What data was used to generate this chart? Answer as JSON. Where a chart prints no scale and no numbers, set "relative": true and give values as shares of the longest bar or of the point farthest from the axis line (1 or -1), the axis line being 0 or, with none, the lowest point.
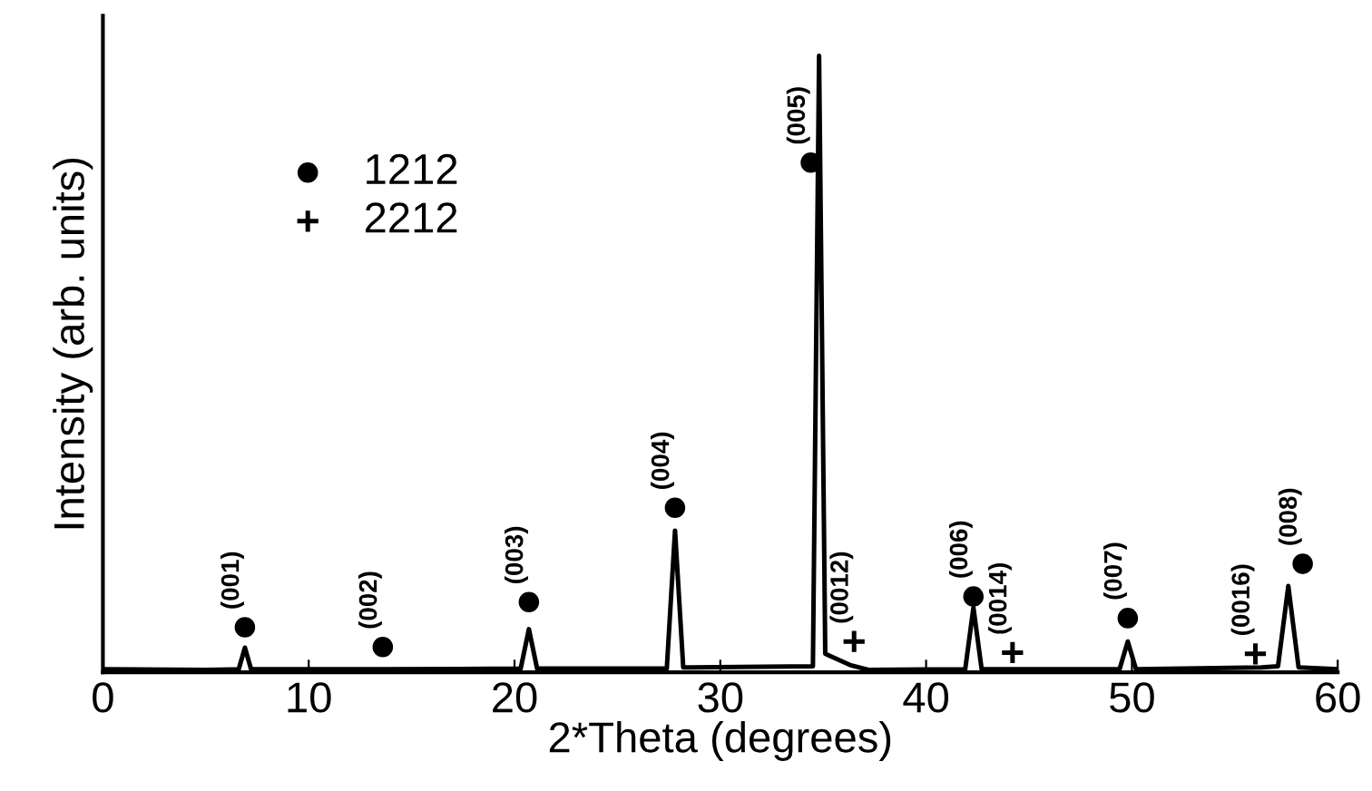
{
  "chart_data": {
    "type": "line",
    "relative": true,
    "xlabel": "2*Theta (degrees)",
    "ylabel": "Intensity (arb. units)",
    "xlim": [
      0,
      60
    ],
    "xticks": [
      0,
      10,
      20,
      30,
      40,
      50,
      60
    ],
    "grid": false,
    "legend": "top left",
    "tick_labels": "x",
    "series": [
      {
        "color": "#000000",
        "marker": "none",
        "x": [
          0,
          5,
          6.6,
          6.9,
          7.2,
          13.6,
          20.3,
          20.7,
          21.1,
          27.4,
          27.8,
          28.2,
          34.5,
          34.8,
          35.1,
          36.3,
          37.2,
          41.9,
          42.3,
          42.7,
          49.4,
          49.8,
          50.2,
          56.3,
          57.1,
          57.6,
          58.1,
          60
        ],
        "values": [
          0.005,
          0.004,
          0.005,
          0.04,
          0.005,
          0.005,
          0.006,
          0.07,
          0.006,
          0.006,
          0.23,
          0.008,
          0.01,
          1,
          0.03,
          0.012,
          0.004,
          0.005,
          0.105,
          0.005,
          0.005,
          0.05,
          0.005,
          0.008,
          0.01,
          0.14,
          0.008,
          0.005
        ]
      },
      {
        "type": "scatter",
        "name": "1212",
        "color": "#000000",
        "marker": "circle",
        "x": [
          6.9,
          13.6,
          20.7,
          27.8,
          34.4,
          42.3,
          49.8,
          58.3
        ],
        "values": [
          0.073,
          0.041,
          0.114,
          0.267,
          0.827,
          0.123,
          0.088,
          0.176
        ]
      },
      {
        "type": "scatter",
        "name": "2212",
        "color": "#000000",
        "marker": "cross",
        "x": [
          36.5,
          44.2,
          56.0
        ],
        "values": [
          0.05,
          0.032,
          0.03
        ]
      }
    ],
    "annotations": [
      {
        "text": "(001)",
        "x": 6.9,
        "y": 0.073
      },
      {
        "text": "(002)",
        "x": 13.6,
        "y": 0.041
      },
      {
        "text": "(003)",
        "x": 20.7,
        "y": 0.114
      },
      {
        "text": "(004)",
        "x": 27.8,
        "y": 0.267
      },
      {
        "text": "(005)",
        "x": 34.4,
        "y": 0.827
      },
      {
        "text": "(0012)",
        "x": 36.5,
        "y": 0.05
      },
      {
        "text": "(006)",
        "x": 42.3,
        "y": 0.123
      },
      {
        "text": "(0014)",
        "x": 44.2,
        "y": 0.032
      },
      {
        "text": "(007)",
        "x": 49.8,
        "y": 0.088
      },
      {
        "text": "(0016)",
        "x": 56.0,
        "y": 0.03
      },
      {
        "text": "(008)",
        "x": 58.3,
        "y": 0.176
      }
    ]
  }
}
